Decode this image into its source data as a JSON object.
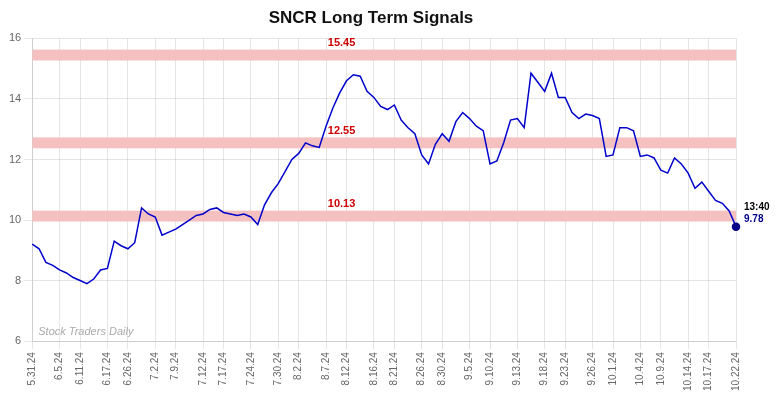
{
  "chart_data": {
    "type": "line",
    "title": "SNCR Long Term Signals",
    "categories": [
      "5.31.24",
      null,
      null,
      null,
      "6.5.24",
      null,
      null,
      "6.11.24",
      null,
      null,
      null,
      "6.17.24",
      null,
      null,
      "6.26.24",
      null,
      null,
      null,
      "7.2.24",
      null,
      null,
      "7.9.24",
      null,
      null,
      null,
      "7.12.24",
      null,
      null,
      "7.17.24",
      null,
      null,
      null,
      "7.24.24",
      null,
      null,
      null,
      "7.30.24",
      null,
      null,
      "8.2.24",
      null,
      null,
      null,
      "8.7.24",
      null,
      null,
      "8.12.24",
      null,
      null,
      null,
      "8.16.24",
      null,
      null,
      "8.21.24",
      null,
      null,
      null,
      "8.26.24",
      null,
      null,
      "8.30.24",
      null,
      null,
      null,
      "9.5.24",
      null,
      null,
      "9.10.24",
      null,
      null,
      null,
      "9.13.24",
      null,
      null,
      null,
      "9.18.24",
      null,
      null,
      "9.23.24",
      null,
      null,
      null,
      "9.26.24",
      null,
      null,
      "10.1.24",
      null,
      null,
      null,
      "10.4.24",
      null,
      null,
      "10.9.24",
      null,
      null,
      null,
      "10.14.24",
      null,
      null,
      "10.17.24",
      null,
      null,
      null,
      "10.22.24"
    ],
    "values": [
      9.2,
      9.05,
      8.6,
      8.5,
      8.35,
      8.25,
      8.1,
      8.0,
      7.9,
      8.05,
      8.35,
      8.4,
      9.3,
      9.15,
      9.05,
      9.25,
      10.4,
      10.2,
      10.1,
      9.5,
      9.6,
      9.7,
      9.85,
      10.0,
      10.15,
      10.2,
      10.35,
      10.4,
      10.25,
      10.2,
      10.15,
      10.2,
      10.1,
      9.85,
      10.5,
      10.9,
      11.2,
      11.6,
      12.0,
      12.2,
      12.55,
      12.45,
      12.4,
      13.1,
      13.7,
      14.2,
      14.6,
      14.8,
      14.75,
      14.25,
      14.05,
      13.75,
      13.65,
      13.8,
      13.3,
      13.05,
      12.85,
      12.15,
      11.85,
      12.5,
      12.85,
      12.6,
      13.25,
      13.55,
      13.35,
      13.1,
      12.95,
      11.85,
      11.95,
      12.55,
      13.3,
      13.35,
      13.05,
      14.85,
      14.55,
      14.25,
      14.85,
      14.05,
      14.05,
      13.55,
      13.35,
      13.5,
      13.45,
      13.35,
      12.1,
      12.15,
      13.05,
      13.05,
      12.95,
      12.1,
      12.15,
      12.05,
      11.65,
      11.55,
      12.05,
      11.85,
      11.55,
      11.05,
      11.25,
      10.95,
      10.65,
      10.55,
      10.3,
      9.78
    ],
    "color": "#0000cc",
    "ylim": [
      6,
      16
    ],
    "yticks": [
      6,
      8,
      10,
      12,
      14,
      16
    ],
    "grid": true,
    "bands": [
      {
        "y": 15.45,
        "label": "15.45",
        "color": "#cc0000",
        "band_color": "#f5c0c0",
        "band_half": 0.18
      },
      {
        "y": 12.55,
        "label": "12.55",
        "color": "#cc0000",
        "band_color": "#f5c0c0",
        "band_half": 0.18
      },
      {
        "y": 10.13,
        "label": "10.13",
        "color": "#cc0000",
        "band_color": "#f5c0c0",
        "band_half": 0.18
      }
    ],
    "end_label": {
      "time": "13:40",
      "price": "9.78",
      "color": "#00008B"
    },
    "watermark": "Stock Traders Daily",
    "watermark_color": "#aaaaaa"
  }
}
